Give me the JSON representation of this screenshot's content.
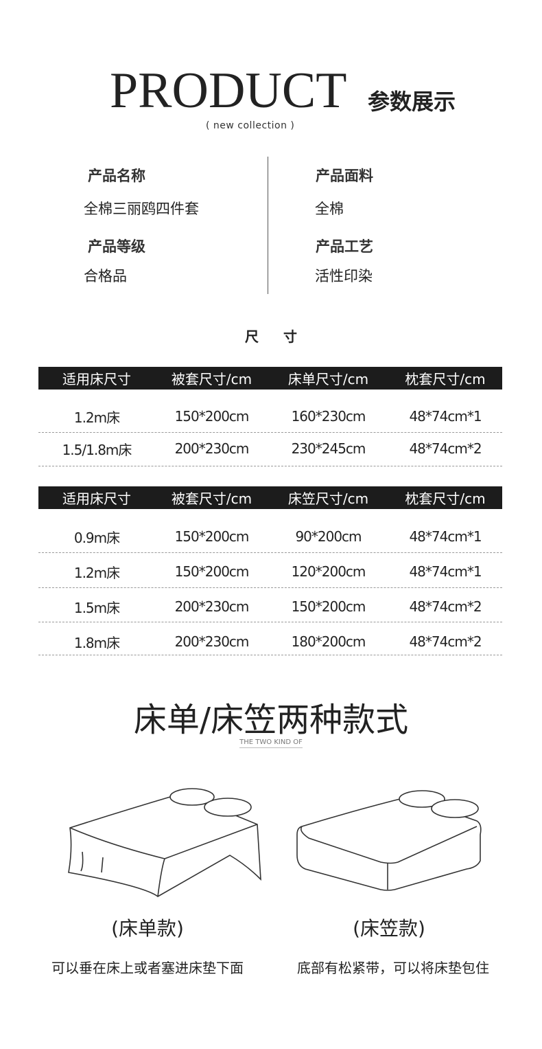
{
  "header": {
    "title_en": "PRODUCT",
    "title_cn": "参数展示",
    "subtitle": "(  new collection  )"
  },
  "specs": [
    {
      "label": "产品名称",
      "value": "全棉三丽鸥四件套"
    },
    {
      "label": "产品面料",
      "value": "全棉"
    },
    {
      "label": "产品等级",
      "value": "合格品"
    },
    {
      "label": "产品工艺",
      "value": "活性印染"
    }
  ],
  "size_title": "尺寸",
  "table1": {
    "headers": [
      "适用床尺寸",
      "被套尺寸/cm",
      "床单尺寸/cm",
      "枕套尺寸/cm"
    ],
    "rows": [
      [
        "1.2m床",
        "150*200cm",
        "160*230cm",
        "48*74cm*1"
      ],
      [
        "1.5/1.8m床",
        "200*230cm",
        "230*245cm",
        "48*74cm*2"
      ]
    ]
  },
  "table2": {
    "headers": [
      "适用床尺寸",
      "被套尺寸/cm",
      "床笠尺寸/cm",
      "枕套尺寸/cm"
    ],
    "rows": [
      [
        "0.9m床",
        "150*200cm",
        "90*200cm",
        "48*74cm*1"
      ],
      [
        "1.2m床",
        "150*200cm",
        "120*200cm",
        "48*74cm*1"
      ],
      [
        "1.5m床",
        "200*230cm",
        "150*200cm",
        "48*74cm*2"
      ],
      [
        "1.8m床",
        "200*230cm",
        "180*200cm",
        "48*74cm*2"
      ]
    ]
  },
  "styles": {
    "title": "床单/床笠两种款式",
    "subtitle": "THE TWO KIND OF",
    "items": [
      {
        "caption": "(床单款)",
        "desc": "可以垂在床上或者塞进床垫下面"
      },
      {
        "caption": "(床笠款)",
        "desc": "底部有松紧带，可以将床垫包住"
      }
    ]
  }
}
